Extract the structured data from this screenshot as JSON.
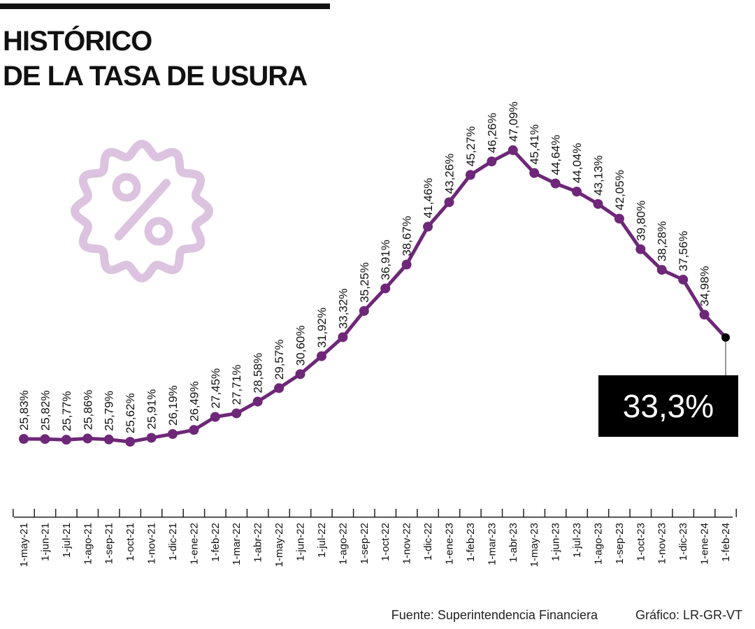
{
  "title_line1": "HISTÓRICO",
  "title_line2": "DE LA TASA DE USURA",
  "icon": "percent-badge-icon",
  "colors": {
    "line": "#6e2779",
    "last_point": "#000000",
    "badge": "#dcc3df",
    "callout_bg": "#000000"
  },
  "callout": "33,3%",
  "footer": {
    "source": "Fuente: Superintendencia Financiera",
    "credit": "Gráfico: LR-GR-VT"
  },
  "chart_data": {
    "type": "line",
    "title": "Histórico de la tasa de usura",
    "xlabel": "",
    "ylabel": "",
    "categories": [
      "1-may-21",
      "1-jun-21",
      "1-jul-21",
      "1-ago-21",
      "1-sep-21",
      "1-oct-21",
      "1-nov-21",
      "1-dic-21",
      "1-ene-22",
      "1-feb-22",
      "1-mar-22",
      "1-abr-22",
      "1-may-22",
      "1-jun-22",
      "1-jul-22",
      "1-ago-22",
      "1-sep-22",
      "1-oct-22",
      "1-nov-22",
      "1-dic-22",
      "1-ene-23",
      "1-feb-23",
      "1-mar-23",
      "1-abr-23",
      "1-may-23",
      "1-jun-23",
      "1-jul-23",
      "1-ago-23",
      "1-sep-23",
      "1-oct-23",
      "1-nov-23",
      "1-dic-23",
      "1-ene-24",
      "1-feb-24"
    ],
    "values": [
      25.83,
      25.82,
      25.77,
      25.86,
      25.79,
      25.62,
      25.91,
      26.19,
      26.49,
      27.45,
      27.71,
      28.58,
      29.57,
      30.6,
      31.92,
      33.32,
      35.25,
      36.91,
      38.67,
      41.46,
      43.26,
      45.27,
      46.26,
      47.09,
      45.41,
      44.64,
      44.04,
      43.13,
      42.05,
      39.8,
      38.28,
      37.56,
      34.98,
      33.3
    ],
    "labels": [
      "25,83%",
      "25,82%",
      "25,77%",
      "25,86%",
      "25,79%",
      "25,62%",
      "25,91%",
      "26,19%",
      "26,49%",
      "27,45%",
      "27,71%",
      "28,58%",
      "29,57%",
      "30,60%",
      "31,92%",
      "33,32%",
      "35,25%",
      "36,91%",
      "38,67%",
      "41,46%",
      "43,26%",
      "45,27%",
      "46,26%",
      "47,09%",
      "45,41%",
      "44,64%",
      "44,04%",
      "43,13%",
      "42,05%",
      "39,80%",
      "38,28%",
      "37,56%",
      "34,98%"
    ],
    "unit": "%",
    "grid": false,
    "legend": "none"
  }
}
